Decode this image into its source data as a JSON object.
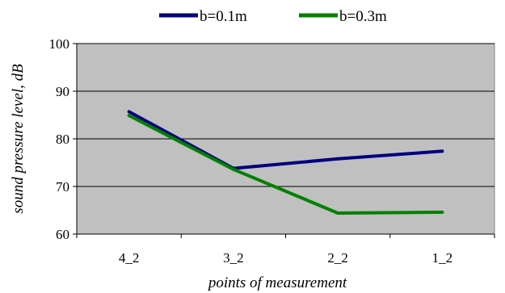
{
  "chart_data": {
    "type": "line",
    "categories": [
      "4_2",
      "3_2",
      "2_2",
      "1_2"
    ],
    "series": [
      {
        "name": "b=0.1m",
        "values": [
          85.7,
          73.8,
          75.8,
          77.4
        ],
        "color": "#000080"
      },
      {
        "name": "b=0.3m",
        "values": [
          84.9,
          73.6,
          64.4,
          64.6
        ],
        "color": "#008000"
      }
    ],
    "title": "",
    "xlabel": "points of measurement",
    "ylabel": "sound pressure level, dB",
    "ylim": [
      60,
      100
    ],
    "yticks": [
      "60",
      "70",
      "80",
      "90",
      "100"
    ],
    "grid": true,
    "legend": "top",
    "plot_background": "#c0c0c0"
  }
}
